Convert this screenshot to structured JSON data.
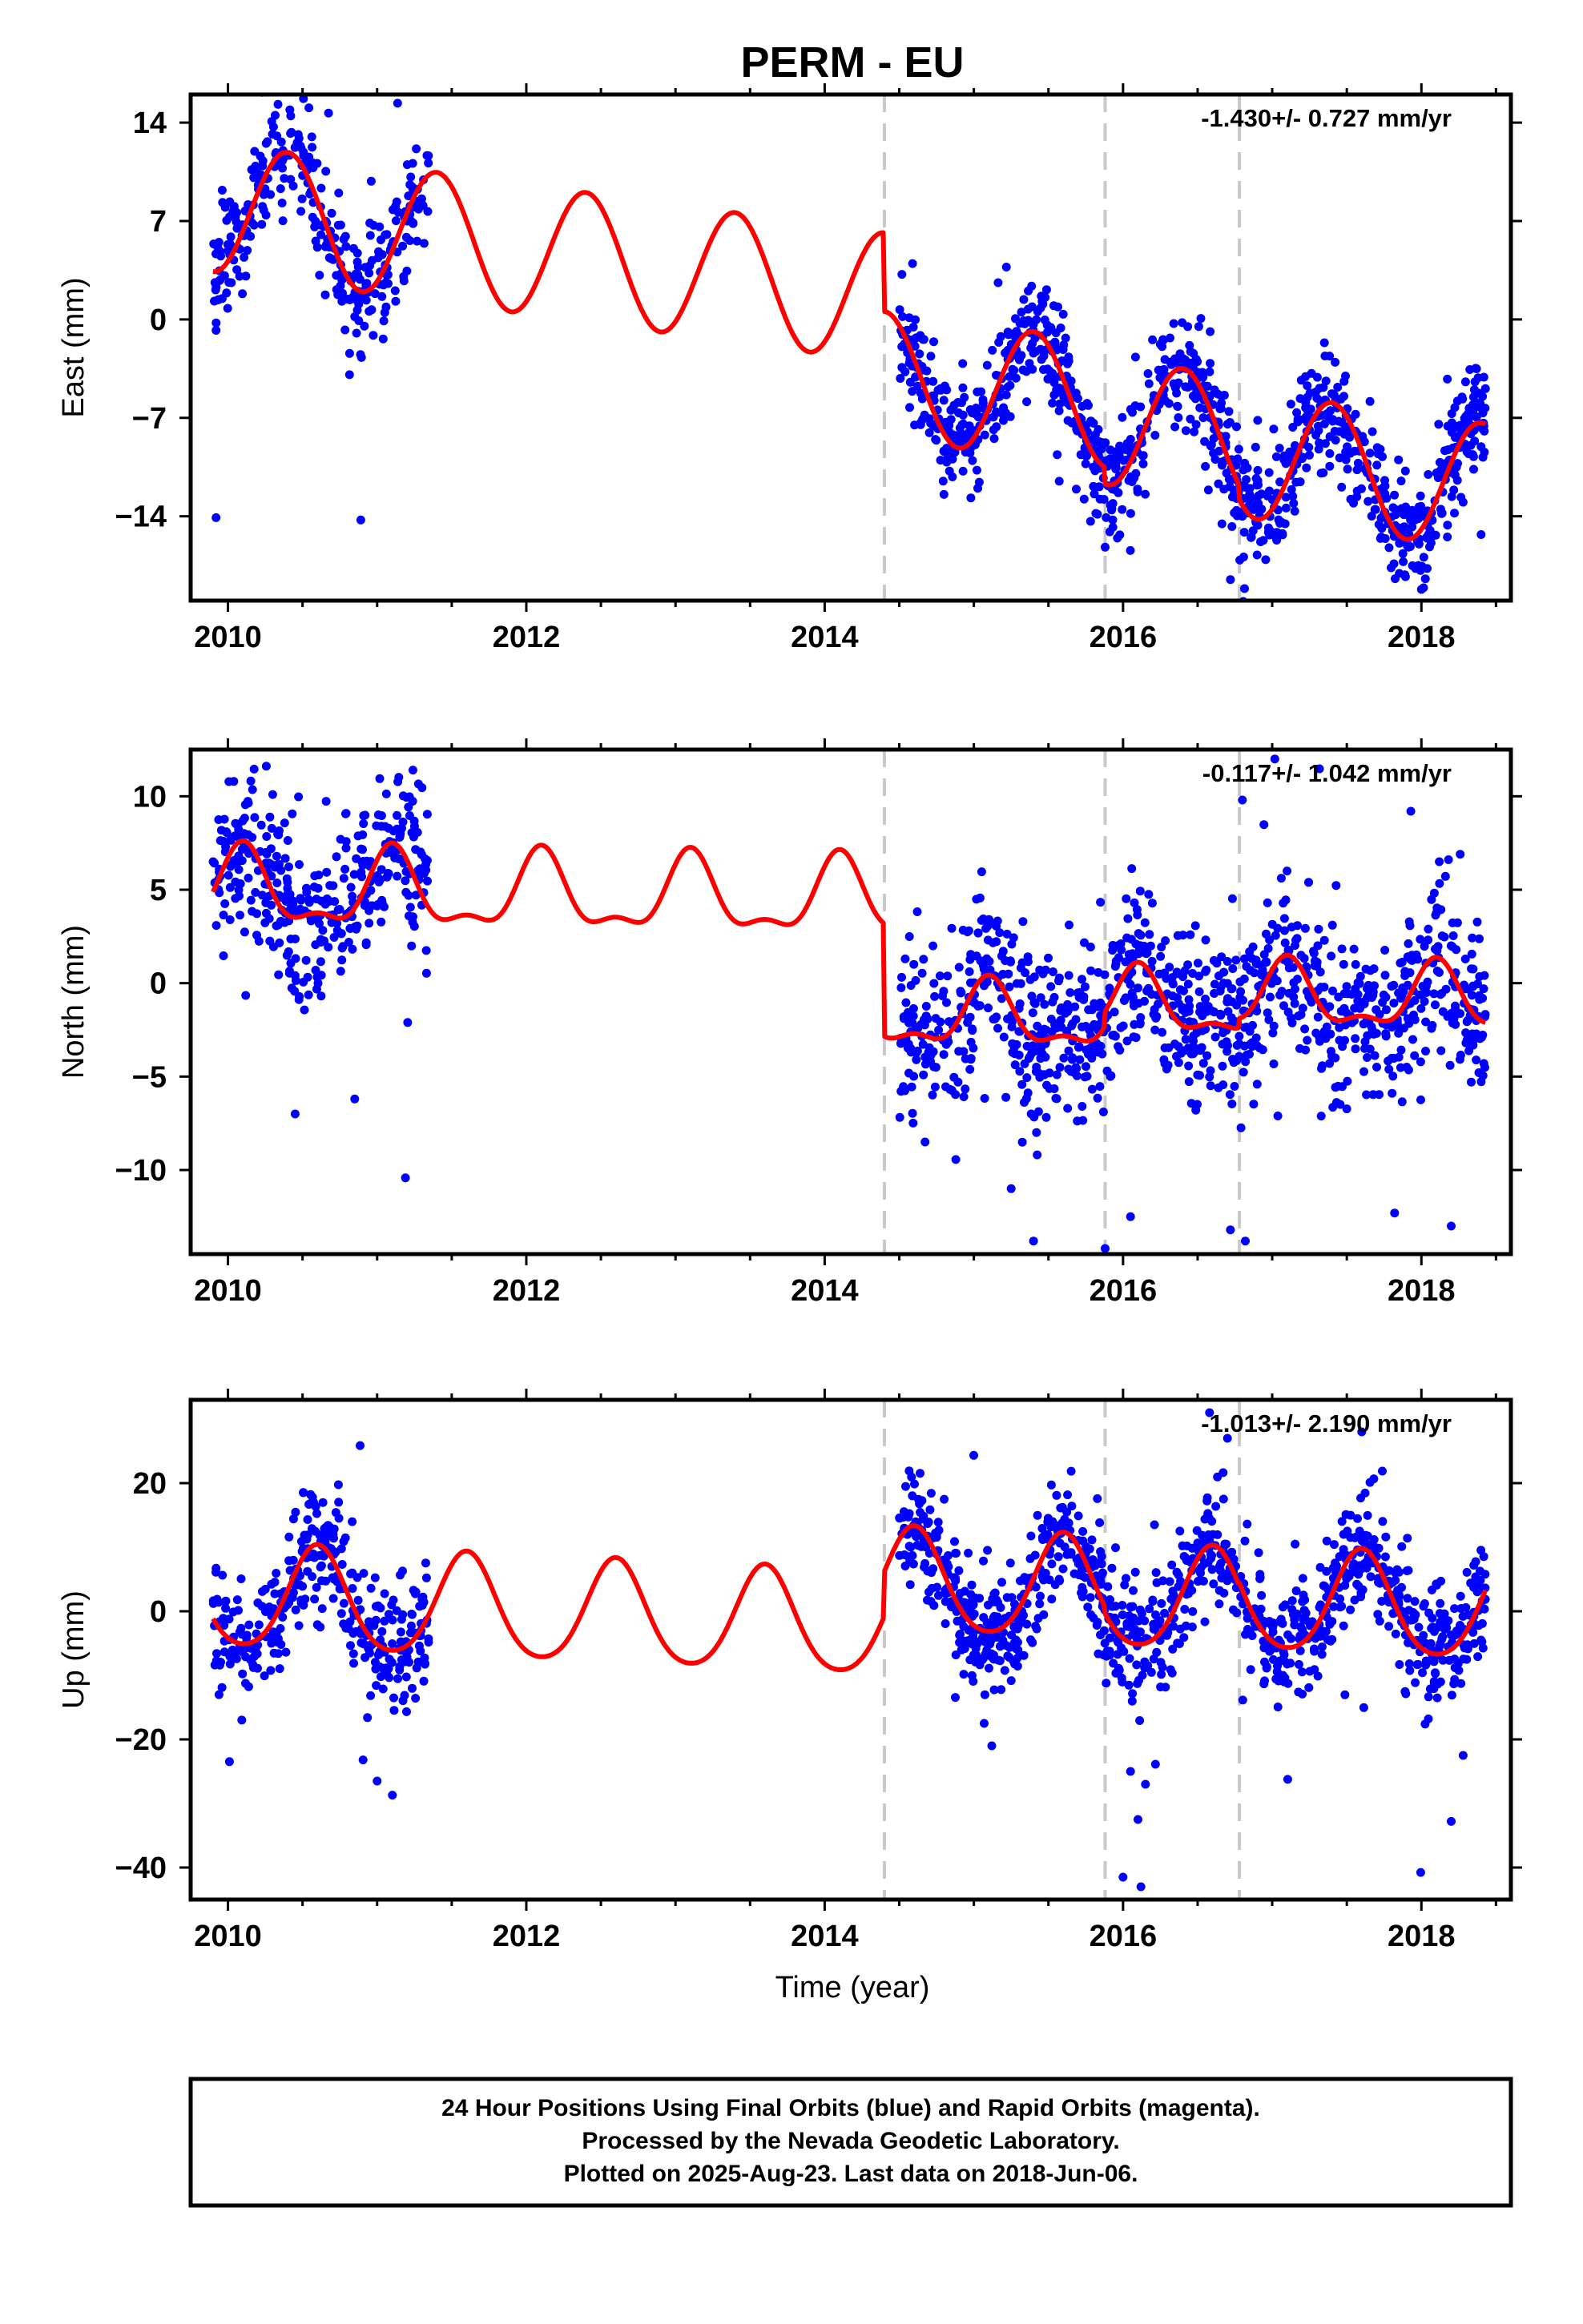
{
  "chart_data": {
    "title": "PERM - EU",
    "xlabel": "Time (year)",
    "x_ticks": [
      "2010",
      "2012",
      "2014",
      "2016",
      "2018"
    ],
    "xlim": [
      2009.75,
      2018.6
    ],
    "colors": {
      "final_orbits": "#0000ff",
      "fit": "#ff0000",
      "steps": "#c8c8c8",
      "frame": "#000000"
    },
    "steps": [
      2014.4,
      2015.88,
      2016.78
    ],
    "data_range": [
      2009.9,
      2018.43
    ],
    "panels": [
      {
        "type": "scatter",
        "component": "east",
        "ylabel": "East (mm)",
        "ylim": [
          -20,
          16
        ],
        "y_ticks": [
          14,
          7,
          0,
          -7,
          -14
        ],
        "rate": "-1.430+/- 0.727 mm/yr",
        "fit_model": {
          "segments": [
            {
              "from": 2009.9,
              "to": 2014.4,
              "offset": 5.0,
              "trend": -1.43,
              "annual_amp": 4.6,
              "annual_peak": 0.4,
              "semi_amp": 0
            },
            {
              "from": 2014.4,
              "to": 2018.43,
              "offset": -0.5,
              "trend": -1.43,
              "annual_amp": 4.5,
              "annual_peak": 0.4,
              "semi_amp": 0
            }
          ]
        },
        "fit_steps": [
          {
            "x": 2015.88,
            "dy": -1.2
          },
          {
            "x": 2016.78,
            "dy": -1.0
          }
        ],
        "observations": [
          {
            "from": 2009.9,
            "to": 2011.35,
            "n": 320,
            "spread": 2.0,
            "outlier_rate": 0.03
          },
          {
            "from": 2014.5,
            "to": 2018.43,
            "n": 1050,
            "spread": 2.0,
            "outlier_rate": 0.03
          }
        ],
        "outliers": [
          [
            2009.92,
            -14.1
          ],
          [
            2015.88,
            -16.2
          ],
          [
            2016.72,
            -18.5
          ],
          [
            2016.8,
            -14.0
          ],
          [
            2017.98,
            -17.5
          ],
          [
            2018.0,
            -19.2
          ],
          [
            2018.4,
            -15.3
          ],
          [
            2018.28,
            -13.0
          ],
          [
            2015.8,
            -10.5
          ]
        ]
      },
      {
        "type": "scatter",
        "component": "north",
        "ylabel": "North (mm)",
        "ylim": [
          -14.5,
          12.5
        ],
        "y_ticks": [
          10,
          5,
          0,
          -5,
          -10
        ],
        "rate": "-0.117+/- 1.042 mm/yr",
        "fit_model": {
          "segments": [
            {
              "from": 2009.9,
              "to": 2014.4,
              "offset": 4.7,
              "trend": -0.117,
              "annual_amp": 1.9,
              "annual_peak": 0.1,
              "semi_amp": 0.8
            },
            {
              "from": 2014.4,
              "to": 2018.43,
              "offset": -1.5,
              "trend": -0.117,
              "annual_amp": 1.6,
              "annual_peak": 0.1,
              "semi_amp": 0.7
            }
          ]
        },
        "fit_steps": [
          {
            "x": 2015.88,
            "dy": 0.8
          },
          {
            "x": 2016.78,
            "dy": 0.5
          }
        ],
        "observations": [
          {
            "from": 2009.9,
            "to": 2011.35,
            "n": 380,
            "spread": 2.2,
            "outlier_rate": 0.04
          },
          {
            "from": 2014.5,
            "to": 2018.43,
            "n": 1050,
            "spread": 2.2,
            "outlier_rate": 0.04
          }
        ],
        "outliers": [
          [
            2010.45,
            -7.0
          ],
          [
            2010.85,
            -6.2
          ],
          [
            2015.4,
            -13.8
          ],
          [
            2015.88,
            -14.2
          ],
          [
            2016.05,
            -12.5
          ],
          [
            2016.72,
            -13.2
          ],
          [
            2016.82,
            -13.8
          ],
          [
            2017.82,
            -12.3
          ],
          [
            2018.2,
            -13.0
          ],
          [
            2016.8,
            9.8
          ],
          [
            2018.12,
            6.5
          ],
          [
            2015.25,
            -11.0
          ]
        ]
      },
      {
        "type": "scatter",
        "component": "up",
        "ylabel": "Up (mm)",
        "ylim": [
          -45,
          33
        ],
        "y_ticks": [
          20,
          0,
          -20,
          -40
        ],
        "rate": "-1.013+/- 2.190 mm/yr",
        "fit_model": {
          "segments": [
            {
              "from": 2009.9,
              "to": 2014.4,
              "offset": 0.0,
              "trend": -1.013,
              "annual_amp": 8.0,
              "annual_peak": 0.6,
              "semi_amp": 1.0
            },
            {
              "from": 2014.4,
              "to": 2018.43,
              "offset": 7.0,
              "trend": -1.013,
              "annual_amp": 8.0,
              "annual_peak": 0.6,
              "semi_amp": 1.0
            }
          ]
        },
        "fit_steps": [
          {
            "x": 2015.88,
            "dy": -1.0
          },
          {
            "x": 2016.78,
            "dy": 0.5
          }
        ],
        "observations": [
          {
            "from": 2009.9,
            "to": 2011.35,
            "n": 360,
            "spread": 4.5,
            "outlier_rate": 0.04
          },
          {
            "from": 2014.5,
            "to": 2018.43,
            "n": 1050,
            "spread": 4.5,
            "outlier_rate": 0.04
          }
        ],
        "outliers": [
          [
            2016.0,
            -41.5
          ],
          [
            2016.12,
            -43.0
          ],
          [
            2016.1,
            -32.5
          ],
          [
            2018.2,
            -32.8
          ],
          [
            2011.0,
            -26.5
          ],
          [
            2016.15,
            -27.0
          ],
          [
            2017.6,
            28.0
          ],
          [
            2016.58,
            31.0
          ],
          [
            2016.7,
            27.0
          ],
          [
            2015.12,
            -21.0
          ],
          [
            2018.28,
            -22.5
          ],
          [
            2016.05,
            -25.0
          ]
        ]
      }
    ]
  },
  "footer": {
    "line1": "24 Hour Positions Using Final Orbits (blue) and Rapid Orbits (magenta).",
    "line2": "Processed by the Nevada Geodetic Laboratory.",
    "line3": "Plotted on 2025-Aug-23. Last data on 2018-Jun-06."
  }
}
